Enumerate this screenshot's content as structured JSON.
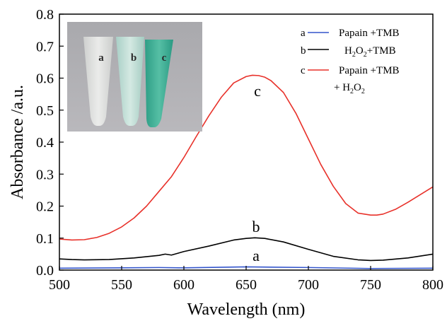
{
  "chart_data": {
    "type": "line",
    "xlabel": "Wavelength (nm)",
    "ylabel": "Absorbance /a.u.",
    "xlim": [
      500,
      800
    ],
    "ylim": [
      0,
      0.8
    ],
    "x_ticks": [
      "500",
      "550",
      "600",
      "650",
      "700",
      "750",
      "800"
    ],
    "y_ticks": [
      "0.0",
      "0.1",
      "0.2",
      "0.3",
      "0.4",
      "0.5",
      "0.6",
      "0.7",
      "0.8"
    ],
    "grid": false,
    "legend_position": "top-right",
    "series": [
      {
        "name": "Papain +TMB",
        "legend_letter": "a",
        "curve_label": "a",
        "color": "#3355cc",
        "x": [
          500,
          550,
          580,
          600,
          650,
          700,
          750,
          800
        ],
        "y": [
          0.006,
          0.007,
          0.008,
          0.007,
          0.01,
          0.008,
          0.005,
          0.006
        ]
      },
      {
        "name": "H2O2+TMB",
        "legend_letter": "b",
        "curve_label": "b",
        "color": "#000000",
        "x": [
          500,
          510,
          520,
          540,
          560,
          580,
          585,
          590,
          600,
          620,
          640,
          650,
          657,
          665,
          680,
          700,
          720,
          740,
          750,
          760,
          780,
          800
        ],
        "y": [
          0.035,
          0.033,
          0.032,
          0.033,
          0.038,
          0.046,
          0.05,
          0.047,
          0.058,
          0.075,
          0.094,
          0.099,
          0.101,
          0.099,
          0.088,
          0.065,
          0.043,
          0.032,
          0.03,
          0.031,
          0.038,
          0.05
        ]
      },
      {
        "name": "Papain +TMB + H2O2",
        "legend_letter": "c",
        "curve_label": "c",
        "color": "#e8312a",
        "x": [
          500,
          510,
          520,
          530,
          540,
          550,
          560,
          570,
          580,
          590,
          600,
          610,
          620,
          630,
          640,
          650,
          655,
          660,
          665,
          670,
          680,
          690,
          700,
          710,
          720,
          730,
          740,
          750,
          755,
          760,
          770,
          780,
          790,
          800
        ],
        "y": [
          0.097,
          0.094,
          0.095,
          0.102,
          0.115,
          0.135,
          0.163,
          0.2,
          0.246,
          0.292,
          0.352,
          0.418,
          0.482,
          0.54,
          0.585,
          0.605,
          0.609,
          0.608,
          0.603,
          0.592,
          0.555,
          0.49,
          0.41,
          0.33,
          0.262,
          0.208,
          0.178,
          0.172,
          0.172,
          0.175,
          0.19,
          0.212,
          0.236,
          0.26
        ]
      }
    ],
    "legend": [
      {
        "letter": "a",
        "text": "Papain +TMB"
      },
      {
        "letter": "b",
        "text": "H2O2+TMB"
      },
      {
        "letter": "c",
        "text": "Papain +TMB",
        "text_line2": "+ H2O2"
      }
    ]
  },
  "inset": {
    "tube_labels": [
      "a",
      "b",
      "c"
    ]
  }
}
